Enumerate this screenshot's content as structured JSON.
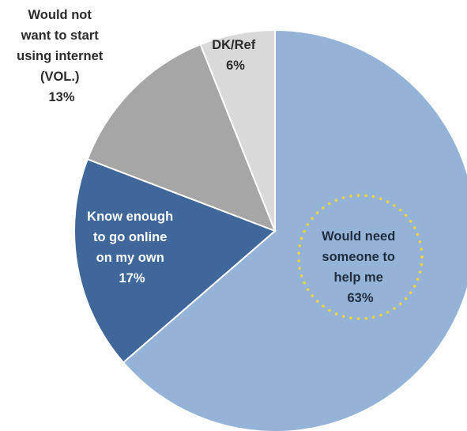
{
  "chart_data": {
    "type": "pie",
    "title": "",
    "start_angle_deg": 0,
    "direction": "clockwise",
    "legend": "none",
    "slices": [
      {
        "label_lines": [
          "Would need",
          "someone to",
          "help me"
        ],
        "value": 63,
        "value_label": "63%",
        "color": "#95b3d7",
        "text_color": "#1f2d3d",
        "highlight": "dotted-yellow-circle"
      },
      {
        "label_lines": [
          "Know enough",
          "to go online",
          "on my own"
        ],
        "value": 17,
        "value_label": "17%",
        "color": "#3f679a",
        "text_color": "#ffffff"
      },
      {
        "label_lines": [
          "Would not",
          "want to start",
          "using internet",
          "(VOL.)"
        ],
        "value": 13,
        "value_label": "13%",
        "color": "#a6a6a6",
        "text_color": "#2b2b2b"
      },
      {
        "label_lines": [
          "DK/Ref"
        ],
        "value": 6,
        "value_label": "6%",
        "color": "#d9d9d9",
        "text_color": "#2b2b2b"
      }
    ],
    "highlight_color": "#f2d43a"
  }
}
